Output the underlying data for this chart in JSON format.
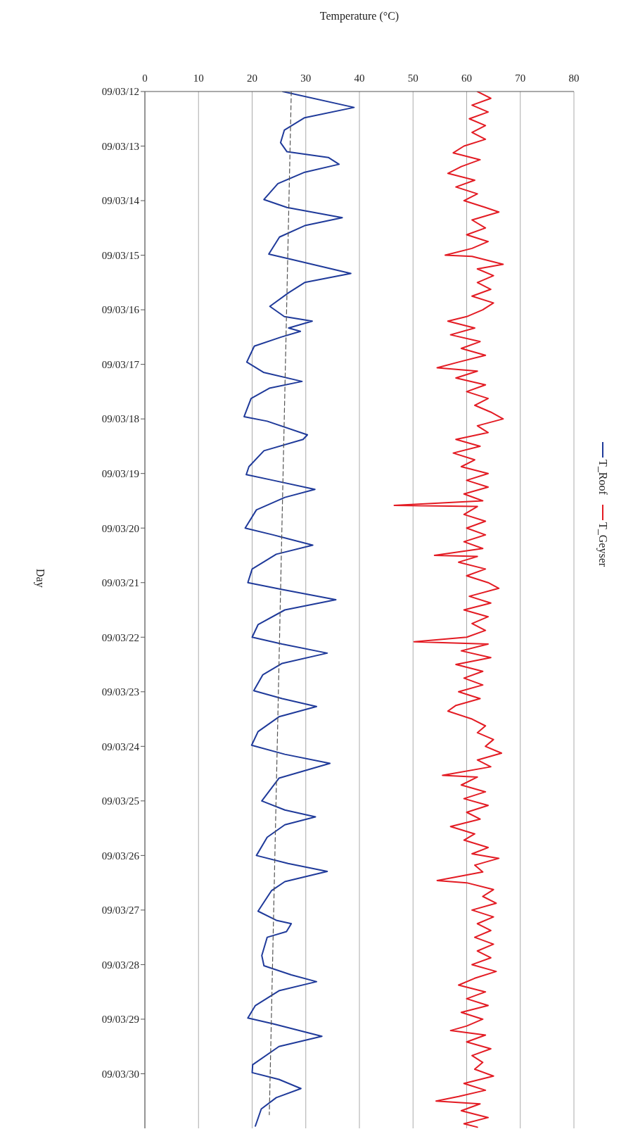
{
  "chart_data": {
    "type": "line",
    "orientation": "horizontal",
    "xlabel": "Temperature (°C)",
    "ylabel": "Day",
    "ylim": [
      "--03-31",
      "--03-12"
    ],
    "yticks": [
      {
        "value": "--03-12",
        "label": "09/03/12"
      },
      {
        "value": "--03-13",
        "label": "09/03/13"
      },
      {
        "value": "--03-14",
        "label": "09/03/14"
      },
      {
        "value": "--03-15",
        "label": "09/03/15"
      },
      {
        "value": "--03-16",
        "label": "09/03/16"
      },
      {
        "value": "--03-17",
        "label": "09/03/17"
      },
      {
        "value": "--03-18",
        "label": "09/03/18"
      },
      {
        "value": "--03-19",
        "label": "09/03/19"
      },
      {
        "value": "--03-20",
        "label": "09/03/20"
      },
      {
        "value": "--03-21",
        "label": "09/03/21"
      },
      {
        "value": "--03-22",
        "label": "09/03/22"
      },
      {
        "value": "--03-23",
        "label": "09/03/23"
      },
      {
        "value": "--03-24",
        "label": "09/03/24"
      },
      {
        "value": "--03-25",
        "label": "09/03/25"
      },
      {
        "value": "--03-26",
        "label": "09/03/26"
      },
      {
        "value": "--03-27",
        "label": "09/03/27"
      },
      {
        "value": "--03-28",
        "label": "09/03/28"
      },
      {
        "value": "--03-29",
        "label": "09/03/29"
      },
      {
        "value": "--03-30",
        "label": "09/03/30"
      }
    ],
    "xlim": [
      0,
      80
    ],
    "xticks": [
      0,
      10,
      20,
      30,
      40,
      50,
      60,
      70,
      80
    ],
    "grid": "x",
    "legend": "right",
    "marker": "none",
    "series": [
      {
        "name": "T_Roof",
        "color": "#1f3a9a",
        "x": [
          "--03-12T00:00",
          "--03-12T07:00",
          "--03-12T11:30",
          "--03-12T17:00",
          "--03-12T22:30",
          "--03-13T02:30",
          "--03-13T05:00",
          "--03-13T08:00",
          "--03-13T11:30",
          "--03-13T16:30",
          "--03-13T23:30",
          "--03-14T03:00",
          "--03-14T07:30",
          "--03-14T11:00",
          "--03-14T16:00",
          "--03-14T23:30",
          "--03-15T02:00",
          "--03-15T08:00",
          "--03-15T12:00",
          "--03-15T16:30",
          "--03-15T22:30",
          "--03-16T03:00",
          "--03-16T05:00",
          "--03-16T08:00",
          "--03-16T09:30",
          "--03-16T12:00",
          "--03-16T16:00",
          "--03-16T23:00",
          "--03-17T03:30",
          "--03-17T07:30",
          "--03-17T10:30",
          "--03-17T15:00",
          "--03-17T23:00",
          "--03-18T01:00",
          "--03-18T07:00",
          "--03-18T09:00",
          "--03-18T14:00",
          "--03-18T21:00",
          "--03-19T00:30",
          "--03-19T03:00",
          "--03-19T07:00",
          "--03-19T10:30",
          "--03-19T16:00",
          "--03-20T00:00",
          "--03-20T03:00",
          "--03-20T07:30",
          "--03-20T11:30",
          "--03-20T18:00",
          "--03-21T00:00",
          "--03-21T03:00",
          "--03-21T07:30",
          "--03-21T12:00",
          "--03-21T18:30",
          "--03-22T00:00",
          "--03-22T03:00",
          "--03-22T07:00",
          "--03-22T11:30",
          "--03-22T16:30",
          "--03-22T23:30",
          "--03-23T03:00",
          "--03-23T06:30",
          "--03-23T11:00",
          "--03-23T17:30",
          "--03-23T23:30",
          "--03-24T03:30",
          "--03-24T07:30",
          "--03-24T14:00",
          "--03-25T00:00",
          "--03-25T04:00",
          "--03-25T07:00",
          "--03-25T10:30",
          "--03-25T16:00",
          "--03-26T00:00",
          "--03-26T03:30",
          "--03-26T07:00",
          "--03-26T11:30",
          "--03-26T15:30",
          "--03-27T00:30",
          "--03-27T04:30",
          "--03-27T06:00",
          "--03-27T09:30",
          "--03-27T12:00",
          "--03-27T20:00",
          "--03-28T00:30",
          "--03-28T04:30",
          "--03-28T07:30",
          "--03-28T11:30",
          "--03-28T18:00",
          "--03-28T23:30",
          "--03-29T02:00",
          "--03-29T07:30",
          "--03-29T12:00",
          "--03-29T20:00",
          "--03-29T23:30",
          "--03-30T02:30",
          "--03-30T06:30",
          "--03-30T10:30",
          "--03-30T15:30",
          "--03-30T23:00"
        ],
        "values": [
          25.7,
          39,
          29.8,
          26,
          25.3,
          26.5,
          34.2,
          36.2,
          29.8,
          24.8,
          22.2,
          26.5,
          36.8,
          29.8,
          25.1,
          23.1,
          27.6,
          38.4,
          29.8,
          26.8,
          23.3,
          26,
          31.2,
          26.8,
          29,
          25.4,
          20.4,
          19,
          22.1,
          29.3,
          23.2,
          19.8,
          18.5,
          22.8,
          30.3,
          29.5,
          22.2,
          19.4,
          18.9,
          23.9,
          31.7,
          26.1,
          20.8,
          18.7,
          23.9,
          31.3,
          24.5,
          20,
          19.2,
          25.6,
          35.6,
          26.1,
          21.1,
          20,
          25.6,
          34,
          25.6,
          22,
          20.3,
          25.6,
          32,
          25,
          21.1,
          19.9,
          26.1,
          34.5,
          25,
          21.8,
          26.1,
          31.8,
          26.1,
          22.8,
          20.8,
          26.7,
          34,
          26.1,
          23.6,
          21.1,
          24.5,
          27.3,
          26.4,
          22.8,
          21.8,
          22.2,
          27.3,
          32,
          25,
          20.6,
          19.2,
          23.9,
          33,
          25,
          20.1,
          20,
          25,
          29.1,
          24.5,
          21.7,
          20.6
        ]
      },
      {
        "name": "T_Geyser",
        "color": "#e31b23",
        "x": [
          "--03-12T00:00",
          "--03-12T03:00",
          "--03-12T06:00",
          "--03-12T09:00",
          "--03-12T12:00",
          "--03-12T15:00",
          "--03-12T18:00",
          "--03-12T21:00",
          "--03-13T00:00",
          "--03-13T03:00",
          "--03-13T06:00",
          "--03-13T09:00",
          "--03-13T12:00",
          "--03-13T15:00",
          "--03-13T18:00",
          "--03-13T21:00",
          "--03-14T00:00",
          "--03-14T03:00",
          "--03-14T05:00",
          "--03-14T08:30",
          "--03-14T12:00",
          "--03-14T15:00",
          "--03-14T18:00",
          "--03-14T21:00",
          "--03-15T00:00",
          "--03-15T00:30",
          "--03-15T04:00",
          "--03-15T06:00",
          "--03-15T09:00",
          "--03-15T12:00",
          "--03-15T15:00",
          "--03-15T18:00",
          "--03-15T21:00",
          "--03-16T00:00",
          "--03-16T03:00",
          "--03-16T05:00",
          "--03-16T08:00",
          "--03-16T11:00",
          "--03-16T14:00",
          "--03-16T17:00",
          "--03-16T20:00",
          "--03-16T23:00",
          "--03-17T01:30",
          "--03-17T03:00",
          "--03-17T06:00",
          "--03-17T09:00",
          "--03-17T12:00",
          "--03-17T15:00",
          "--03-17T18:00",
          "--03-17T21:00",
          "--03-18T00:00",
          "--03-18T03:00",
          "--03-18T06:00",
          "--03-18T09:00",
          "--03-18T12:00",
          "--03-18T15:00",
          "--03-18T18:00",
          "--03-18T21:00",
          "--03-19T00:00",
          "--03-19T03:00",
          "--03-19T06:00",
          "--03-19T09:00",
          "--03-19T12:00",
          "--03-19T14:00",
          "--03-19T14:30",
          "--03-19T18:00",
          "--03-19T21:00",
          "--03-20T00:00",
          "--03-20T03:00",
          "--03-20T06:00",
          "--03-20T09:00",
          "--03-20T12:00",
          "--03-20T12:30",
          "--03-20T15:00",
          "--03-20T18:00",
          "--03-20T21:00",
          "--03-21T00:00",
          "--03-21T02:30",
          "--03-21T06:00",
          "--03-21T09:00",
          "--03-21T12:00",
          "--03-21T15:00",
          "--03-21T18:00",
          "--03-21T21:00",
          "--03-22T00:00",
          "--03-22T02:00",
          "--03-22T03:00",
          "--03-22T06:00",
          "--03-22T09:00",
          "--03-22T12:00",
          "--03-22T15:00",
          "--03-22T18:00",
          "--03-22T21:00",
          "--03-23T00:00",
          "--03-23T03:00",
          "--03-23T06:00",
          "--03-23T08:30",
          "--03-23T12:00",
          "--03-23T15:00",
          "--03-23T18:00",
          "--03-23T21:00",
          "--03-24T00:00",
          "--03-24T03:00",
          "--03-24T06:00",
          "--03-24T09:00",
          "--03-24T12:45",
          "--03-24T13:30",
          "--03-24T17:00",
          "--03-24T20:00",
          "--03-24T23:00",
          "--03-25T02:00",
          "--03-25T05:00",
          "--03-25T08:00",
          "--03-25T11:15",
          "--03-25T14:30",
          "--03-25T17:15",
          "--03-25T20:30",
          "--03-25T23:15",
          "--03-26T01:15",
          "--03-26T04:15",
          "--03-26T07:15",
          "--03-26T11:00",
          "--03-26T12:00",
          "--03-26T15:00",
          "--03-26T18:00",
          "--03-26T21:00",
          "--03-27T00:00",
          "--03-27T03:00",
          "--03-27T06:00",
          "--03-27T09:00",
          "--03-27T12:00",
          "--03-27T15:00",
          "--03-27T18:00",
          "--03-27T21:00",
          "--03-28T00:00",
          "--03-28T03:00",
          "--03-28T06:00",
          "--03-28T09:00",
          "--03-28T12:00",
          "--03-28T15:00",
          "--03-28T18:00",
          "--03-28T21:00",
          "--03-29T00:00",
          "--03-29T03:00",
          "--03-29T05:00",
          "--03-29T07:00",
          "--03-29T10:00",
          "--03-29T13:00",
          "--03-29T16:00",
          "--03-29T19:00",
          "--03-29T22:00",
          "--03-30T01:00",
          "--03-30T04:15",
          "--03-30T07:15",
          "--03-30T10:00",
          "--03-30T12:00",
          "--03-30T13:15",
          "--03-30T16:15",
          "--03-30T19:15",
          "--03-30T22:00",
          "--03-30T23:30"
        ],
        "values": [
          62,
          64.5,
          61,
          64,
          60.5,
          63.5,
          61,
          63.5,
          59.5,
          57.5,
          62.5,
          59,
          56.5,
          61.5,
          58,
          62,
          59.5,
          63.5,
          66,
          61,
          63.5,
          60,
          64,
          61,
          56,
          61,
          66.8,
          62,
          65,
          62,
          64.5,
          61,
          65,
          63,
          60,
          56.5,
          61.5,
          57,
          62.5,
          59,
          63.5,
          58.5,
          54.5,
          62,
          58,
          63.5,
          60,
          64,
          61.5,
          64.5,
          66.8,
          62,
          64,
          58,
          62.5,
          57.5,
          61.5,
          59,
          64,
          60,
          64,
          59.5,
          63,
          46.5,
          62,
          59.5,
          63.5,
          60,
          63.5,
          59.5,
          63,
          54,
          62,
          58.5,
          63.5,
          60,
          64,
          66,
          60.5,
          64.5,
          59.5,
          64,
          61,
          63.5,
          60,
          50.2,
          64,
          59,
          64.5,
          58,
          63,
          59.5,
          63,
          58.5,
          62.5,
          58,
          56.5,
          61,
          63.5,
          62,
          65,
          63.5,
          66.5,
          62,
          64.5,
          55.5,
          62,
          59,
          63.5,
          59.5,
          64,
          60,
          62.5,
          57,
          61.5,
          59.5,
          64,
          61,
          66,
          61.5,
          63,
          54.5,
          60,
          65,
          63,
          65.5,
          61,
          65,
          62,
          64.5,
          61.5,
          65,
          62,
          64.5,
          61,
          65.5,
          61.5,
          58.5,
          63.5,
          60,
          64,
          59,
          63,
          60,
          57,
          63.5,
          60,
          64.5,
          61,
          63,
          61.5,
          65,
          59.5,
          63.5,
          58.5,
          54.3,
          62.5,
          59,
          64,
          59.5,
          62
        ]
      },
      {
        "type": "line",
        "color": "#555555",
        "line_style": "dashed",
        "x": [
          "--03-12T00:00",
          "--03-30T18:00"
        ],
        "values": [
          27.3,
          23.2
        ]
      }
    ]
  }
}
